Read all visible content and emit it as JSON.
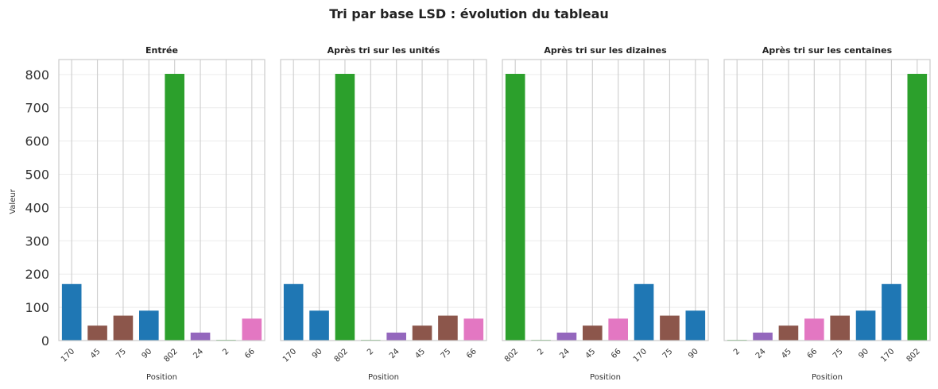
{
  "chart_data": {
    "type": "bar",
    "title": "Tri par base LSD : évolution du tableau",
    "ylabel": "Valeur",
    "xlabel": "Position",
    "ylim": [
      0,
      845
    ],
    "yticks": [
      0,
      100,
      200,
      300,
      400,
      500,
      600,
      700,
      800
    ],
    "colors": {
      "blue": "#1f77b4",
      "brown": "#8c564b",
      "green": "#2ca02c",
      "purple": "#9467bd",
      "pink": "#e377c2"
    },
    "panels": [
      {
        "title": "Entrée",
        "categories": [
          "170",
          "45",
          "75",
          "90",
          "802",
          "24",
          "2",
          "66"
        ],
        "values": [
          170,
          45,
          75,
          90,
          802,
          24,
          2,
          66
        ],
        "colors": [
          "blue",
          "brown",
          "brown",
          "blue",
          "green",
          "purple",
          "green",
          "pink"
        ]
      },
      {
        "title": "Après tri sur les unités",
        "categories": [
          "170",
          "90",
          "802",
          "2",
          "24",
          "45",
          "75",
          "66"
        ],
        "values": [
          170,
          90,
          802,
          2,
          24,
          45,
          75,
          66
        ],
        "colors": [
          "blue",
          "blue",
          "green",
          "green",
          "purple",
          "brown",
          "brown",
          "pink"
        ]
      },
      {
        "title": "Après tri sur les dizaines",
        "categories": [
          "802",
          "2",
          "24",
          "45",
          "66",
          "170",
          "75",
          "90"
        ],
        "values": [
          802,
          2,
          24,
          45,
          66,
          170,
          75,
          90
        ],
        "colors": [
          "green",
          "green",
          "purple",
          "brown",
          "pink",
          "blue",
          "brown",
          "blue"
        ]
      },
      {
        "title": "Après tri sur les centaines",
        "categories": [
          "2",
          "24",
          "45",
          "66",
          "75",
          "90",
          "170",
          "802"
        ],
        "values": [
          2,
          24,
          45,
          66,
          75,
          90,
          170,
          802
        ],
        "colors": [
          "green",
          "purple",
          "brown",
          "pink",
          "brown",
          "blue",
          "blue",
          "green"
        ]
      }
    ]
  }
}
